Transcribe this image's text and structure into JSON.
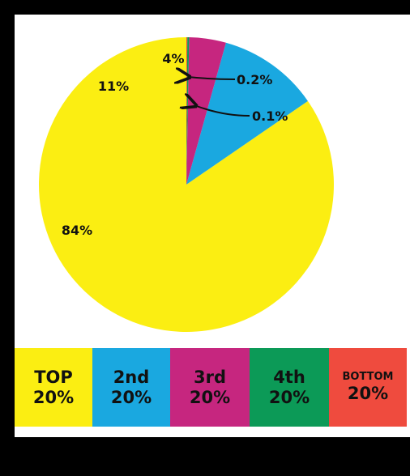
{
  "chart_data": {
    "type": "pie",
    "title": "",
    "slices": [
      {
        "label": "84%",
        "value": 84,
        "color": "#fbee12",
        "category": "TOP 20%"
      },
      {
        "label": "11%",
        "value": 11,
        "color": "#1aa8e0",
        "category": "2nd 20%"
      },
      {
        "label": "4%",
        "value": 4,
        "color": "#c6267f",
        "category": "3rd 20%"
      },
      {
        "label": "0.2%",
        "value": 0.2,
        "color": "#0c9a57",
        "category": "4th 20%"
      },
      {
        "label": "0.1%",
        "value": 0.1,
        "color": "#ef4b3e",
        "category": "BOTTOM 20%"
      }
    ],
    "start_angle_deg": 0,
    "direction": "counterclockwise"
  },
  "legend": [
    {
      "name": "TOP",
      "pct": "20%",
      "color": "#fbee12"
    },
    {
      "name": "2nd",
      "pct": "20%",
      "color": "#1aa8e0"
    },
    {
      "name": "3rd",
      "pct": "20%",
      "color": "#c6267f"
    },
    {
      "name": "4th",
      "pct": "20%",
      "color": "#0c9a57"
    },
    {
      "name": "BOTTOM",
      "pct": "20%",
      "color": "#ef4b3e"
    }
  ]
}
